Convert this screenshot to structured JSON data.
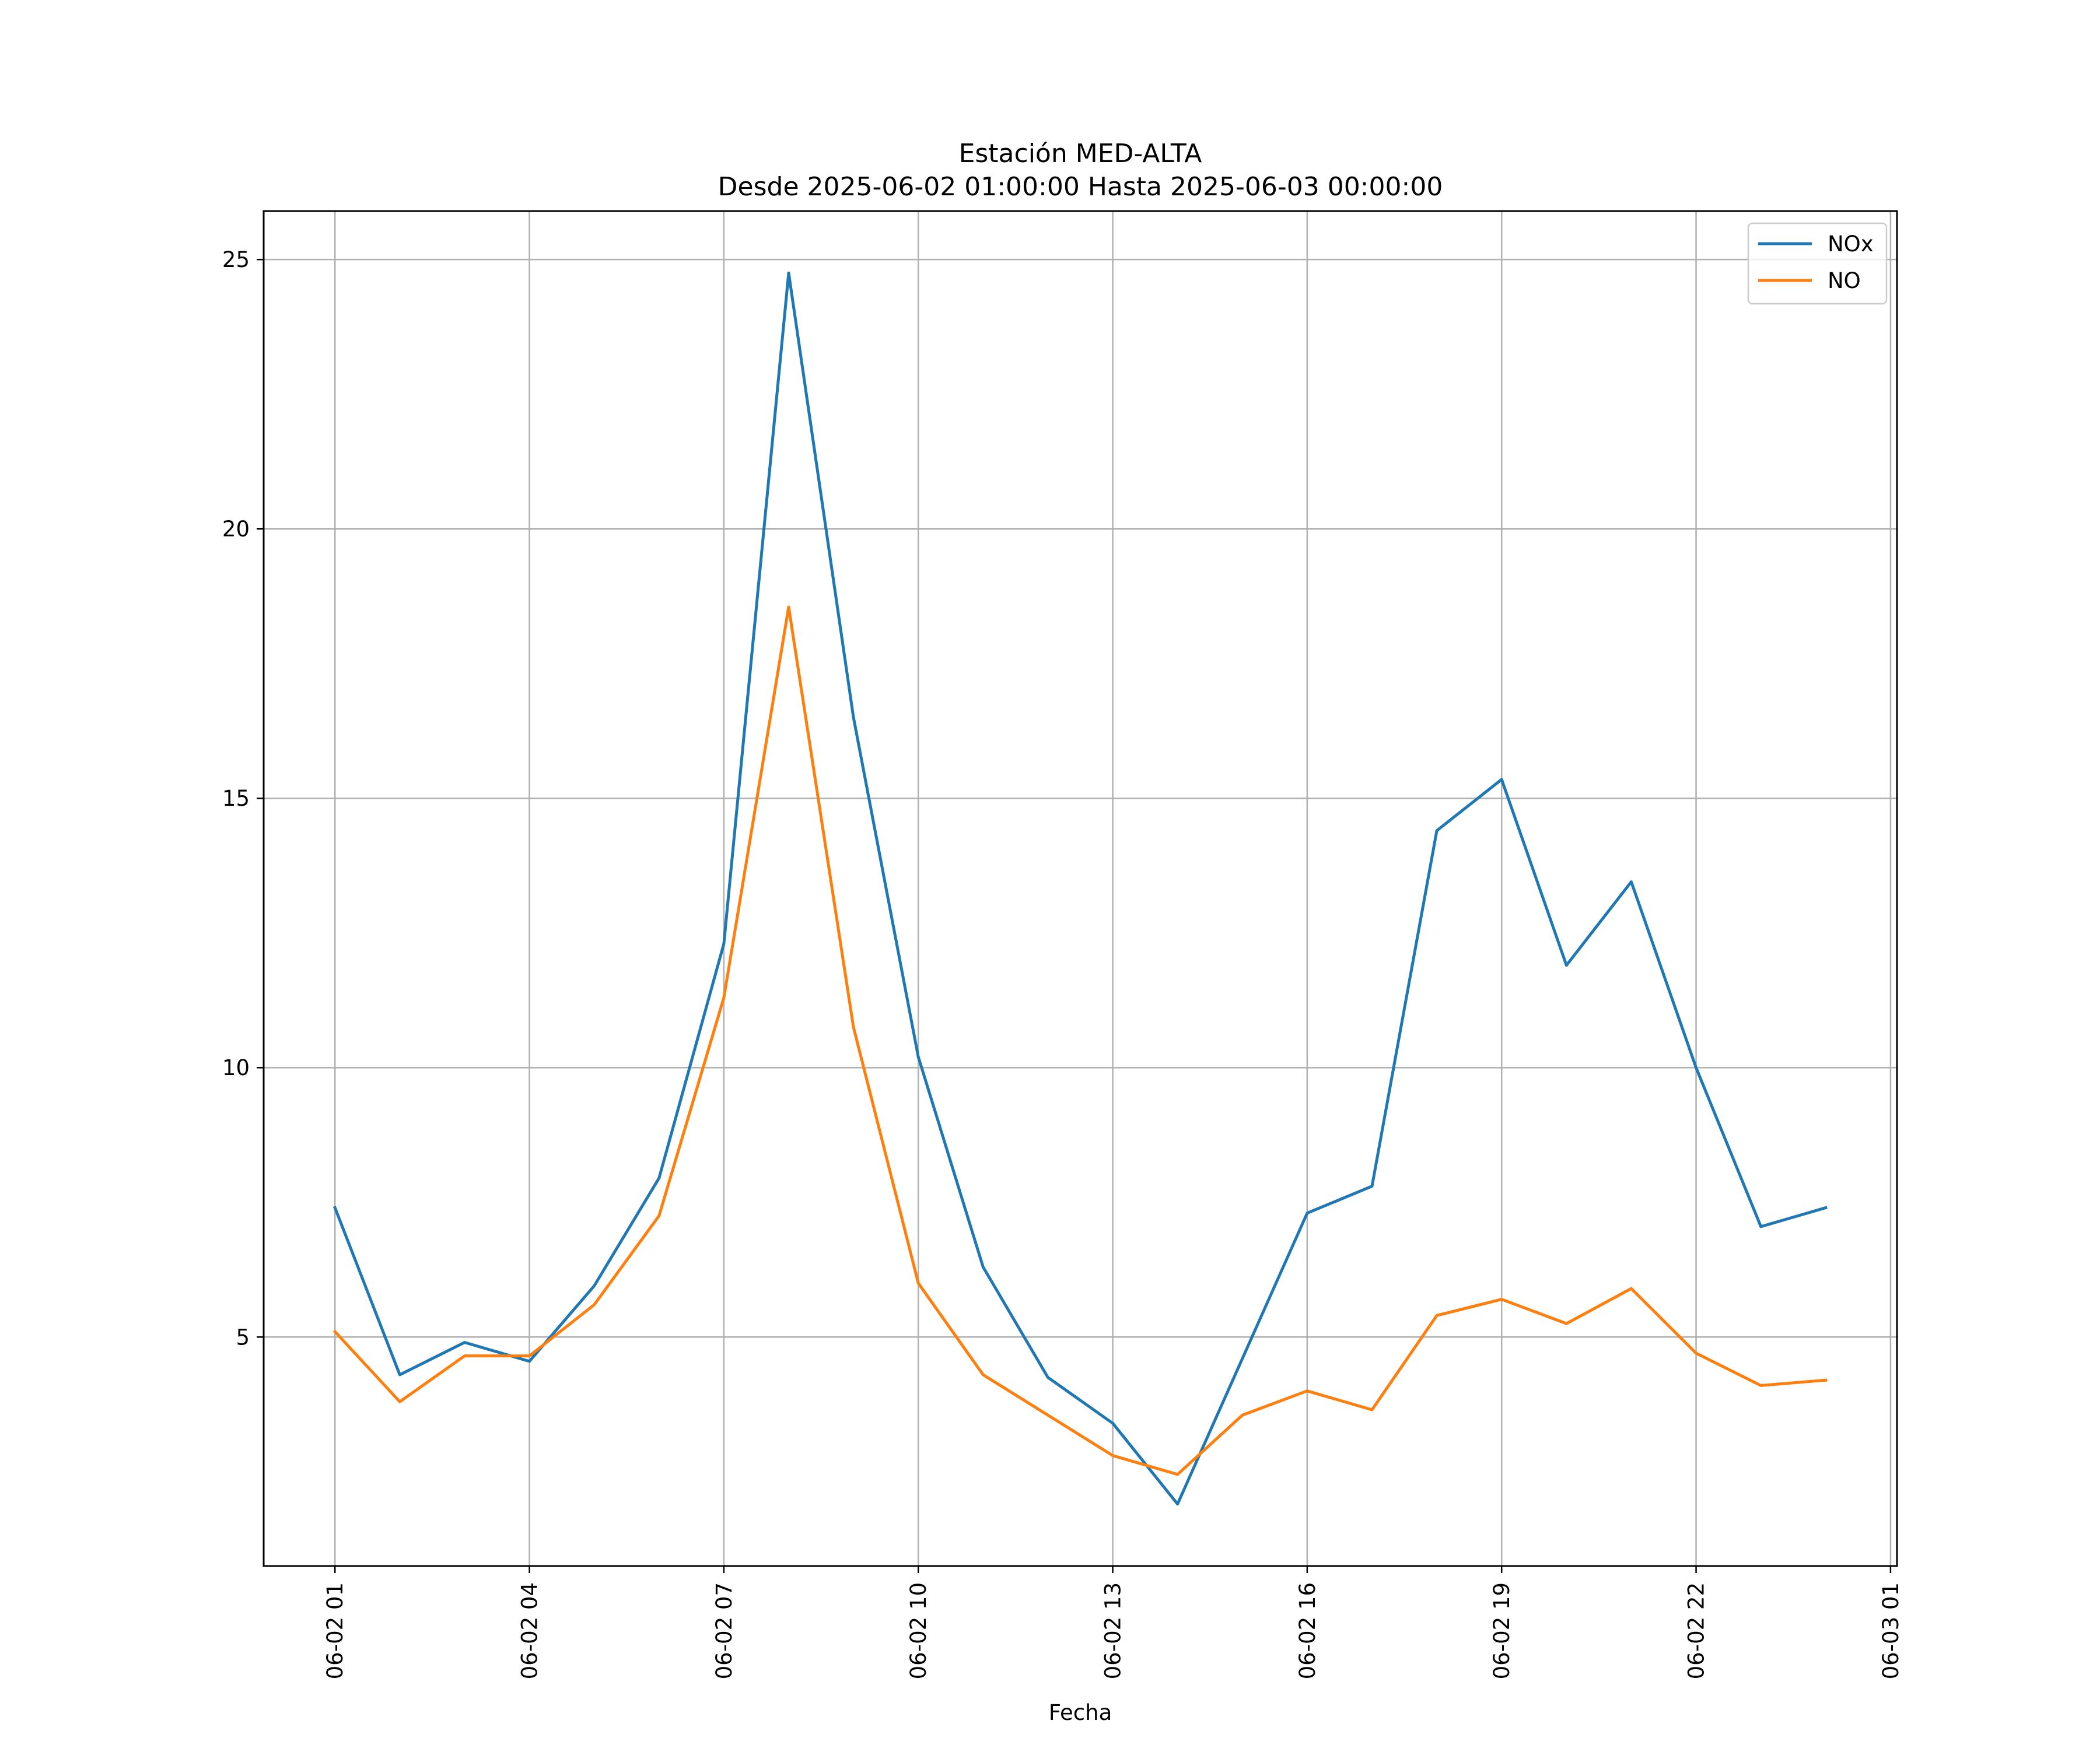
{
  "chart_data": {
    "type": "line",
    "title": "Estación MED-ALTA",
    "subtitle": "Desde 2025-06-02 01:00:00 Hasta 2025-06-03 00:00:00",
    "xlabel": "Fecha",
    "ylabel": "",
    "x_unit": "hour",
    "x_tick_values": [
      1,
      4,
      7,
      10,
      13,
      16,
      19,
      22,
      25
    ],
    "x_tick_labels": [
      "06-02 01",
      "06-02 04",
      "06-02 07",
      "06-02 10",
      "06-02 13",
      "06-02 16",
      "06-02 19",
      "06-02 22",
      "06-03 01"
    ],
    "xlim": [
      -0.1,
      25.1
    ],
    "ylim": [
      0.75,
      25.9
    ],
    "y_ticks": [
      5,
      10,
      15,
      20,
      25
    ],
    "y_tick_labels": [
      "5",
      "10",
      "15",
      "20",
      "25"
    ],
    "grid": true,
    "legend_position": "top-right",
    "x": [
      1,
      2,
      3,
      4,
      5,
      6,
      7,
      8,
      9,
      10,
      11,
      12,
      13,
      14,
      15,
      16,
      17,
      18,
      19,
      20,
      21,
      22,
      23,
      24
    ],
    "series": [
      {
        "name": "NOx",
        "color": "#1f77b4",
        "values": [
          7.4,
          4.3,
          4.9,
          4.55,
          5.95,
          7.95,
          12.3,
          24.75,
          16.5,
          10.2,
          6.3,
          4.25,
          3.4,
          1.9,
          4.6,
          7.3,
          7.8,
          14.4,
          15.35,
          11.9,
          13.45,
          10.0,
          7.05,
          7.4
        ]
      },
      {
        "name": "NO",
        "color": "#ff7f0e",
        "values": [
          5.1,
          3.8,
          4.65,
          4.65,
          5.6,
          7.25,
          11.3,
          18.55,
          10.75,
          6.0,
          4.3,
          3.55,
          2.8,
          2.45,
          3.55,
          4.0,
          3.65,
          5.4,
          5.7,
          5.25,
          5.9,
          4.7,
          4.1,
          4.2
        ]
      }
    ]
  }
}
